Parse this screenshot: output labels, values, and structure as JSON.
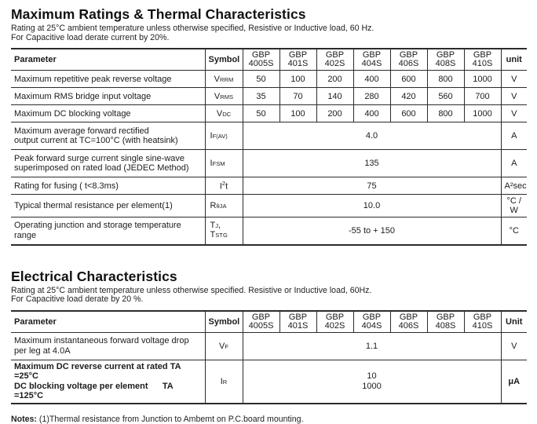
{
  "section1": {
    "title": "Maximum Ratings & Thermal Characteristics",
    "subtitle1": "Rating at 25°C ambient temperature unless otherwise specified, Resistive or Inductive load, 60 Hz.",
    "subtitle2": "For Capacitive load derate current by 20%."
  },
  "section2": {
    "title": "Electrical Characteristics",
    "subtitle1": "Rating at 25°C ambient temperature unless otherwise specified. Resistive or Inductive load, 60Hz.",
    "subtitle2": "For Capacitive load derate by 20 %."
  },
  "t1": {
    "head": {
      "parameter": "Parameter",
      "symbol": "Symbol",
      "unit": "unit",
      "models": [
        {
          "l1": "GBP",
          "l2": "4005S"
        },
        {
          "l1": "GBP",
          "l2": "401S"
        },
        {
          "l1": "GBP",
          "l2": "402S"
        },
        {
          "l1": "GBP",
          "l2": "404S"
        },
        {
          "l1": "GBP",
          "l2": "406S"
        },
        {
          "l1": "GBP",
          "l2": "408S"
        },
        {
          "l1": "GBP",
          "l2": "410S"
        }
      ]
    },
    "rows": [
      {
        "param1": "Maximum repetitive peak reverse voltage",
        "sym": {
          "b": "V",
          "s": "RRM"
        },
        "values": [
          "50",
          "100",
          "200",
          "400",
          "600",
          "800",
          "1000"
        ],
        "unit": "V"
      },
      {
        "param1": "Maximum RMS bridge input voltage",
        "sym": {
          "b": "V",
          "s": "RMS"
        },
        "values": [
          "35",
          "70",
          "140",
          "280",
          "420",
          "560",
          "700"
        ],
        "unit": "V"
      },
      {
        "param1": "Maximum DC blocking voltage",
        "sym": {
          "b": "V",
          "s": "DC"
        },
        "values": [
          "50",
          "100",
          "200",
          "400",
          "600",
          "800",
          "1000"
        ],
        "unit": "V"
      },
      {
        "param1": "Maximum average forward rectified",
        "param2": "output current at TC=100°C  (with heatsink)",
        "sym": {
          "b": "I",
          "s": "F(AV)"
        },
        "span": "4.0",
        "unit": "A"
      },
      {
        "param1": "Peak forward surge current single sine-wave",
        "param2": "superimposed on rated load (JEDEC Method)",
        "sym": {
          "b": "I",
          "s": "FSM"
        },
        "span": "135",
        "unit": "A"
      },
      {
        "param1": "Rating for fusing ( t<8.3ms)",
        "sym": {
          "b": "I",
          "p": "2",
          "t": "t"
        },
        "span": "75",
        "unit": "A²sec"
      },
      {
        "param1": "Typical  thermal resistance per element(1)",
        "sym": {
          "b": "R",
          "s": "θJA"
        },
        "span": "10.0",
        "unit": "°C / W"
      },
      {
        "param1": "Operating junction and storage temperature",
        "param2": "range",
        "sym": {
          "b": "T",
          "s": "J",
          "t": ",",
          "b2": "T",
          "s2": "STG"
        },
        "span": "-55 to + 150",
        "unit": "°C"
      }
    ]
  },
  "t2": {
    "head": {
      "parameter": "Parameter",
      "symbol": "Symbol",
      "unit": "Unit",
      "models": [
        {
          "l1": "GBP",
          "l2": "4005S"
        },
        {
          "l1": "GBP",
          "l2": "401S"
        },
        {
          "l1": "GBP",
          "l2": "402S"
        },
        {
          "l1": "GBP",
          "l2": "404S"
        },
        {
          "l1": "GBP",
          "l2": "406S"
        },
        {
          "l1": "GBP",
          "l2": "408S"
        },
        {
          "l1": "GBP",
          "l2": "410S"
        }
      ]
    },
    "rows": [
      {
        "param1": "Maximum instantaneous forward voltage drop",
        "param2": "per leg at 4.0A",
        "sym": {
          "b": "V",
          "s": "F"
        },
        "span": "1.1",
        "unit": "V"
      },
      {
        "param1": "Maximum DC reverse current at rated TA =25°C",
        "param2": "DC blocking voltage per element      TA =125°C",
        "sym": {
          "b": "I",
          "s": "R"
        },
        "span1": "10",
        "span2": "1000",
        "unit": "μA"
      }
    ]
  },
  "notes": {
    "label": "Notes:",
    "text": " (1)Thermal resistance from Junction to Ambemt on P.C.board mounting."
  }
}
